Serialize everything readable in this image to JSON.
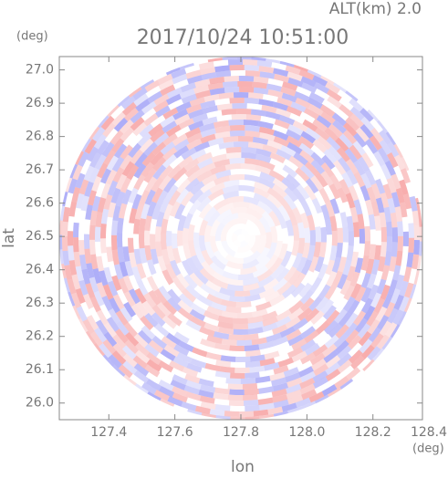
{
  "chart_data": {
    "type": "radar_ppi",
    "title": "2017/10/24 10:51:00",
    "altitude_label": "ALT(km) 2.0",
    "xlabel": "lon",
    "ylabel": "lat",
    "x_unit": "(deg)",
    "y_unit": "(deg)",
    "xlim": [
      127.25,
      128.35
    ],
    "ylim": [
      25.95,
      27.04
    ],
    "xticks": [
      127.4,
      127.6,
      127.8,
      {
        "value": 128.0,
        "label": "128.0"
      },
      128.2,
      128.4
    ],
    "yticks": [
      {
        "value": 26.0,
        "label": "26.0"
      },
      26.1,
      26.2,
      26.3,
      26.4,
      26.5,
      26.6,
      26.7,
      26.8,
      26.9,
      {
        "value": 27.0,
        "label": "27.0"
      }
    ]
  }
}
